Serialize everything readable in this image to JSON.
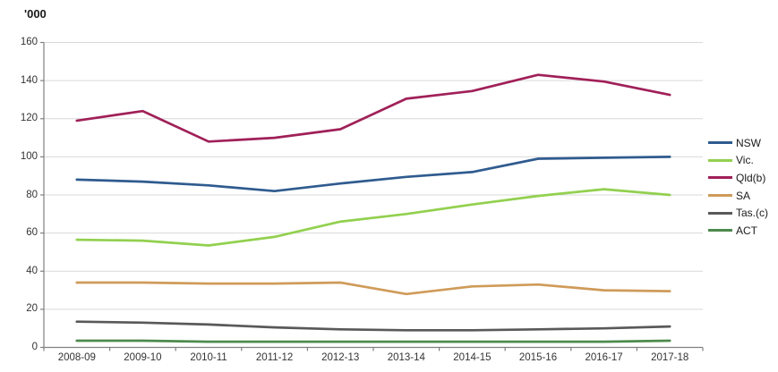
{
  "title": "'000",
  "chart_data": {
    "type": "line",
    "title": "",
    "ylabel": "'000",
    "xlabel": "",
    "ylim": [
      0,
      160
    ],
    "ytick_step": 20,
    "grid": true,
    "legend_position": "right",
    "categories": [
      "2008-09",
      "2009-10",
      "2010-11",
      "2011-12",
      "2012-13",
      "2013-14",
      "2014-15",
      "2015-16",
      "2016-17",
      "2017-18"
    ],
    "series": [
      {
        "name": "NSW",
        "color": "#2f5b8f",
        "values": [
          88,
          87,
          85,
          82,
          86,
          89.5,
          92,
          99,
          99.5,
          100
        ]
      },
      {
        "name": "Vic.",
        "color": "#92d04f",
        "values": [
          56.5,
          56,
          53.5,
          58,
          66,
          70,
          75,
          79.5,
          83,
          80
        ]
      },
      {
        "name": "Qld(b)",
        "color": "#a02058",
        "values": [
          119,
          124,
          108,
          110,
          114.5,
          130.5,
          134.5,
          143,
          139.5,
          132.5
        ]
      },
      {
        "name": "SA",
        "color": "#cf9b59",
        "values": [
          34,
          34,
          33.5,
          33.5,
          34,
          28,
          32,
          33,
          30,
          29.5
        ]
      },
      {
        "name": "Tas.(c)",
        "color": "#595959",
        "values": [
          13.5,
          13,
          12,
          10.5,
          9.5,
          9,
          9,
          9.5,
          10,
          11
        ]
      },
      {
        "name": "ACT",
        "color": "#4d8a4d",
        "values": [
          3.5,
          3.5,
          3,
          3,
          3,
          3,
          3,
          3,
          3,
          3.5
        ]
      }
    ]
  },
  "colors": {
    "gridline": "#d9d9d9",
    "axis": "#808080",
    "tick_text": "#333333",
    "background": "#ffffff"
  }
}
